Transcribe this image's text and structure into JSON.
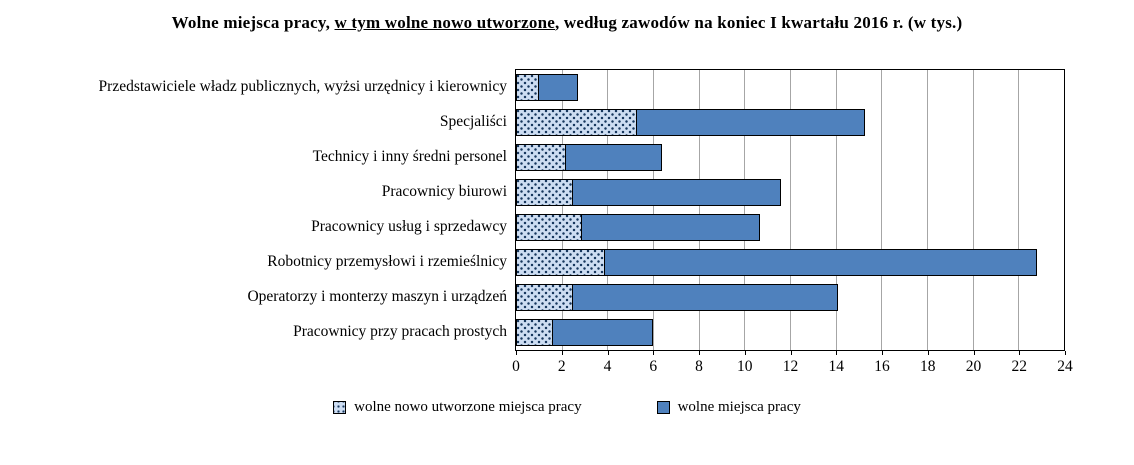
{
  "title": {
    "prefix": "Wolne miejsca pracy, ",
    "underlined": "w tym wolne nowo utworzone",
    "suffix": ", według zawodów na koniec I kwartału 2016 r. (w tys.)"
  },
  "chart_data": {
    "type": "bar",
    "orientation": "horizontal",
    "title": "Wolne miejsca pracy, w tym wolne nowo utworzone, według zawodów na koniec I kwartału 2016 r. (w tys.)",
    "categories": [
      "Przedstawiciele władz publicznych, wyżsi urzędnicy i kierownicy",
      "Specjaliści",
      "Technicy i inny średni personel",
      "Pracownicy biurowi",
      "Pracownicy usług i sprzedawcy",
      "Robotnicy przemysłowi i rzemieślnicy",
      "Operatorzy i monterzy maszyn i urządzeń",
      "Pracownicy przy pracach prostych"
    ],
    "series": [
      {
        "name": "wolne nowo utworzone miejsca pracy",
        "values": [
          1.0,
          5.3,
          2.2,
          2.5,
          2.9,
          3.9,
          2.5,
          1.6
        ]
      },
      {
        "name": "wolne miejsca pracy",
        "values": [
          2.7,
          15.3,
          6.4,
          11.6,
          10.7,
          22.8,
          14.1,
          6.0
        ]
      }
    ],
    "xlabel": "",
    "ylabel": "",
    "xlim": [
      0,
      24
    ],
    "xticks": [
      0,
      2,
      4,
      6,
      8,
      10,
      12,
      14,
      16,
      18,
      20,
      22,
      24
    ],
    "grid": "vertical",
    "legend_position": "bottom",
    "colors": {
      "new_vacancies_fill": "#cdddf2",
      "new_vacancies_dot": "#17375e",
      "vacancies_fill": "#4f81bd",
      "bar_border": "#000000",
      "gridline": "#a6a6a6"
    }
  }
}
